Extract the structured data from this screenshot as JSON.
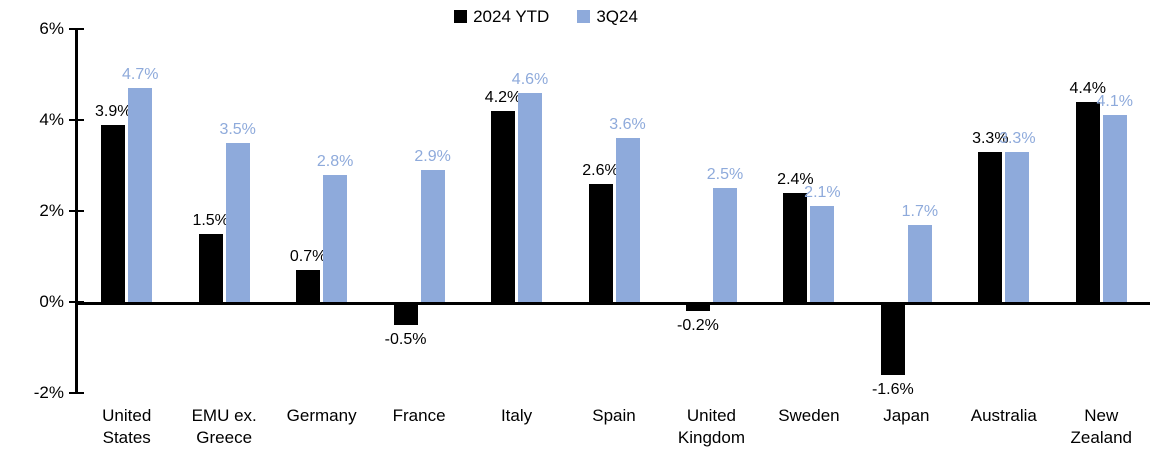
{
  "chart_data": {
    "type": "bar",
    "title": "",
    "xlabel": "",
    "ylabel": "",
    "legend_position": "top",
    "grid": false,
    "y_axis": {
      "ylim": [
        -2,
        6
      ],
      "tick_labels": [
        "6%",
        "4%",
        "2%",
        "0%",
        "-2%"
      ],
      "tick_values": [
        6,
        4,
        2,
        0,
        -2
      ]
    },
    "categories": [
      "United States",
      "EMU ex. Greece",
      "Germany",
      "France",
      "Italy",
      "Spain",
      "United Kingdom",
      "Sweden",
      "Japan",
      "Australia",
      "New Zealand"
    ],
    "category_display": [
      "United\nStates",
      "EMU ex.\nGreece",
      "Germany",
      "France",
      "Italy",
      "Spain",
      "United\nKingdom",
      "Sweden",
      "Japan",
      "Australia",
      "New\nZealand"
    ],
    "series": [
      {
        "name": "2024 YTD",
        "color": "#000000",
        "label_color": "#000000",
        "values": [
          3.9,
          1.5,
          0.7,
          -0.5,
          4.2,
          2.6,
          -0.2,
          2.4,
          -1.6,
          3.3,
          4.4
        ],
        "labels": [
          "3.9%",
          "1.5%",
          "0.7%",
          "-0.5%",
          "4.2%",
          "2.6%",
          "-0.2%",
          "2.4%",
          "-1.6%",
          "3.3%",
          "4.4%"
        ]
      },
      {
        "name": "3Q24",
        "color": "#8EAADB",
        "label_color": "#8EAADB",
        "values": [
          4.7,
          3.5,
          2.8,
          2.9,
          4.6,
          3.6,
          2.5,
          2.1,
          1.7,
          3.3,
          4.1
        ],
        "labels": [
          "4.7%",
          "3.5%",
          "2.8%",
          "2.9%",
          "4.6%",
          "3.6%",
          "2.5%",
          "2.1%",
          "1.7%",
          "3.3%",
          "4.1%"
        ]
      }
    ]
  }
}
